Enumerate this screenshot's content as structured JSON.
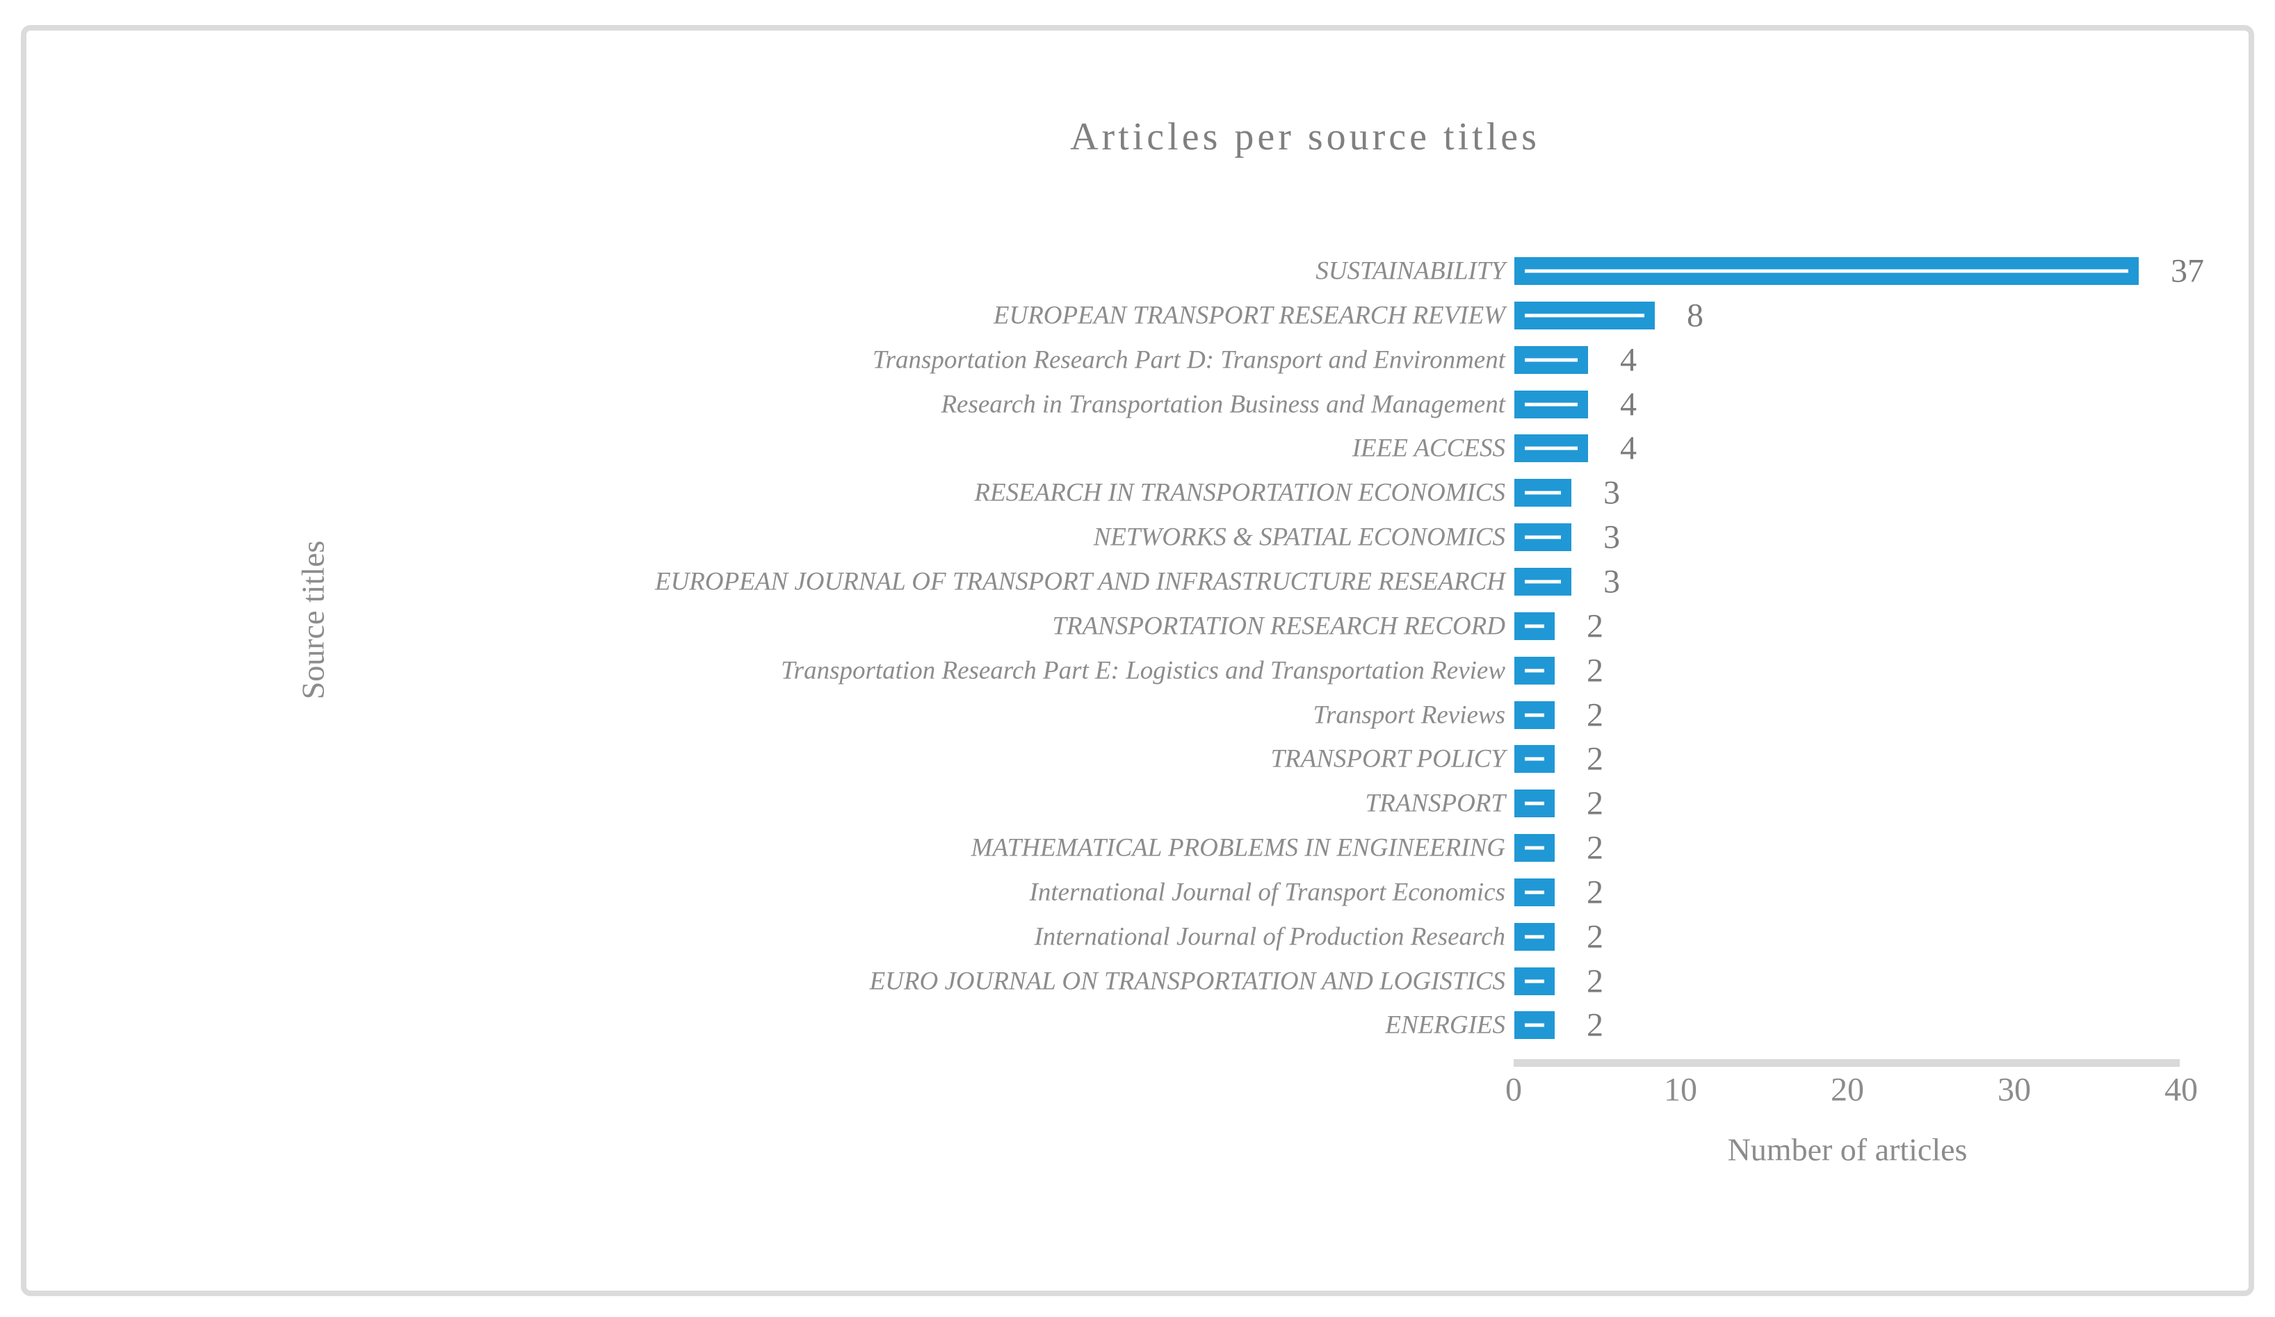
{
  "chart_data": {
    "type": "bar",
    "orientation": "horizontal",
    "title": "Articles per source titles",
    "xlabel": "Number of articles",
    "ylabel": "Source titles",
    "categories": [
      "SUSTAINABILITY",
      "EUROPEAN TRANSPORT RESEARCH REVIEW",
      "Transportation Research Part D: Transport and Environment",
      "Research in Transportation Business and Management",
      "IEEE ACCESS",
      "RESEARCH IN TRANSPORTATION ECONOMICS",
      "NETWORKS & SPATIAL ECONOMICS",
      "EUROPEAN JOURNAL OF TRANSPORT AND INFRASTRUCTURE RESEARCH",
      "TRANSPORTATION RESEARCH RECORD",
      "Transportation Research Part E: Logistics and Transportation Review",
      "Transport Reviews",
      "TRANSPORT POLICY",
      "TRANSPORT",
      "MATHEMATICAL PROBLEMS IN ENGINEERING",
      "International Journal of Transport Economics",
      "International Journal of Production Research",
      "EURO JOURNAL ON TRANSPORTATION AND LOGISTICS",
      "ENERGIES"
    ],
    "values": [
      37,
      8,
      4,
      4,
      4,
      3,
      3,
      3,
      2,
      2,
      2,
      2,
      2,
      2,
      2,
      2,
      2,
      2
    ],
    "data_labels": [
      "37",
      "8",
      "4",
      "4",
      "4",
      "3",
      "3",
      "3",
      "2",
      "2",
      "2",
      "2",
      "2",
      "2",
      "2",
      "2",
      "2",
      "2"
    ],
    "x_ticks": [
      "0",
      "10",
      "20",
      "30",
      "40"
    ],
    "xlim": [
      0,
      40
    ],
    "grid": "off",
    "legend": "none",
    "colors": {
      "bar": "#2098D5",
      "bar_stripe": "#FFFFFF",
      "title_text": "#808080",
      "axis_text": "#8C8C8C",
      "value_text": "#7D7D7D",
      "axis_line": "#D9D9D9",
      "frame_border": "#DBDBDB"
    }
  }
}
